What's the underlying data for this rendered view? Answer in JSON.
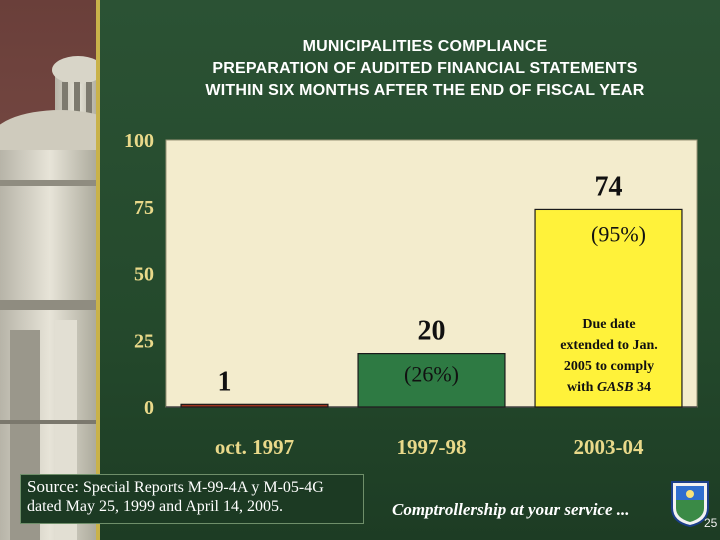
{
  "title_lines": [
    "MUNICIPALITIES COMPLIANCE",
    "PREPARATION OF AUDITED FINANCIAL STATEMENTS",
    "WITHIN SIX MONTHS AFTER THE END OF FISCAL YEAR"
  ],
  "chart_data": {
    "type": "bar",
    "title": "MUNICIPALITIES COMPLIANCE PREPARATION OF AUDITED FINANCIAL STATEMENTS WITHIN SIX MONTHS AFTER THE END OF FISCAL YEAR",
    "categories": [
      "oct. 1997",
      "1997-98",
      "2003-04"
    ],
    "values": [
      1,
      20,
      74
    ],
    "data_labels": [
      "1",
      "20",
      "74"
    ],
    "percent_labels": [
      "",
      "(26%)",
      "(95%)"
    ],
    "bar_colors": [
      "#a0341f",
      "#2e7a43",
      "#fff23a"
    ],
    "yticks": [
      "0",
      "25",
      "50",
      "75",
      "100"
    ],
    "ylim": [
      0,
      100
    ],
    "grid": false,
    "legend": "none",
    "annotation": {
      "lines": [
        "Due date",
        "extended to Jan.",
        "2005 to comply"
      ],
      "last_prefix": "with ",
      "last_italic": "GASB",
      "last_suffix": " 34"
    },
    "plot_color": "#f3eccd"
  },
  "source": {
    "lead": "Source:",
    "rest": " Special Reports M-99-4A y M-05-4G dated May 25, 1999 and April 14, 2005."
  },
  "footer_text": "Comptrollership at your service ...",
  "page_number": "25"
}
